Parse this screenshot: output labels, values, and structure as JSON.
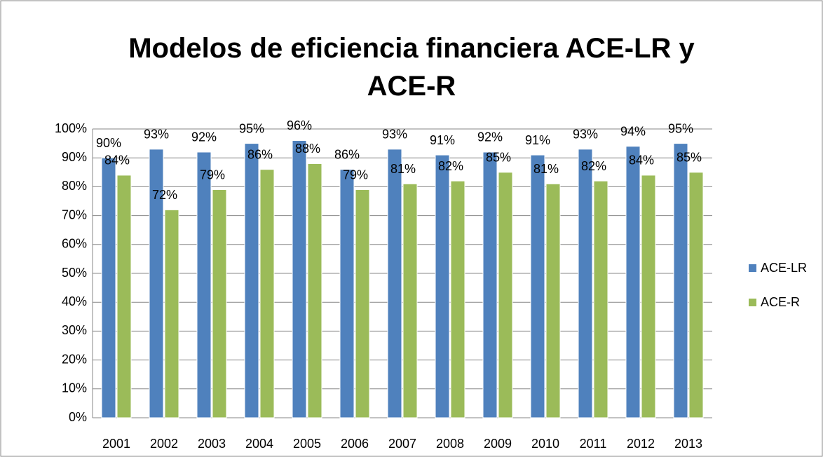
{
  "chart_data": {
    "type": "bar",
    "title": "Modelos de eficiencia financiera ACE-LR y ACE-R",
    "categories": [
      "2001",
      "2002",
      "2003",
      "2004",
      "2005",
      "2006",
      "2007",
      "2008",
      "2009",
      "2010",
      "2011",
      "2012",
      "2013"
    ],
    "series": [
      {
        "name": "ACE-LR",
        "color": "#4f81bd",
        "values": [
          90,
          93,
          92,
          95,
          96,
          86,
          93,
          91,
          92,
          91,
          93,
          94,
          95
        ],
        "value_labels": [
          "90%",
          "93%",
          "92%",
          "95%",
          "96%",
          "86%",
          "93%",
          "91%",
          "92%",
          "91%",
          "93%",
          "94%",
          "95%"
        ]
      },
      {
        "name": "ACE-R",
        "color": "#9bbb59",
        "values": [
          84,
          72,
          79,
          86,
          88,
          79,
          81,
          82,
          85,
          81,
          82,
          84,
          85
        ],
        "value_labels": [
          "84%",
          "72%",
          "79%",
          "86%",
          "88%",
          "79%",
          "81%",
          "82%",
          "85%",
          "81%",
          "82%",
          "84%",
          "85%"
        ]
      }
    ],
    "ylim": [
      0,
      100
    ],
    "yticks": [
      {
        "value": 0,
        "label": "0%"
      },
      {
        "value": 10,
        "label": "10%"
      },
      {
        "value": 20,
        "label": "20%"
      },
      {
        "value": 30,
        "label": "30%"
      },
      {
        "value": 40,
        "label": "40%"
      },
      {
        "value": 50,
        "label": "50%"
      },
      {
        "value": 60,
        "label": "60%"
      },
      {
        "value": 70,
        "label": "70%"
      },
      {
        "value": 80,
        "label": "80%"
      },
      {
        "value": 90,
        "label": "90%"
      },
      {
        "value": 100,
        "label": "100%"
      }
    ],
    "grid": true,
    "legend": "right"
  }
}
